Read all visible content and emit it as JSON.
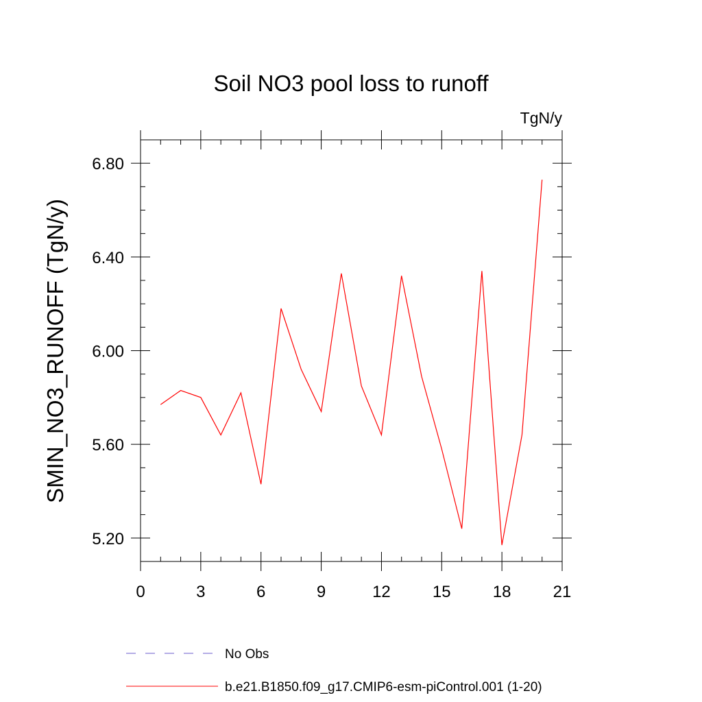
{
  "chart_data": {
    "type": "line",
    "title": "Soil NO3 pool loss to runoff",
    "units_label": "TgN/y",
    "ylabel": "SMIN_NO3_RUNOFF  (TgN/y)",
    "xlabel": "",
    "xlim": [
      0,
      21
    ],
    "ylim": [
      5.1,
      6.9
    ],
    "x_ticks": [
      0,
      3,
      6,
      9,
      12,
      15,
      18,
      21
    ],
    "x_minor_step": 1,
    "y_ticks": [
      5.2,
      5.6,
      6.0,
      6.4,
      6.8
    ],
    "y_tick_labels": [
      "5.20",
      "5.60",
      "6.00",
      "6.40",
      "6.80"
    ],
    "y_minor_step": 0.1,
    "grid": false,
    "legend_position": "bottom",
    "series": [
      {
        "name": "b.e21.B1850.f09_g17.CMIP6-esm-piControl.001 (1-20)",
        "color": "#ff0000",
        "style": "solid",
        "x": [
          1,
          2,
          3,
          4,
          5,
          6,
          7,
          8,
          9,
          10,
          11,
          12,
          13,
          14,
          15,
          16,
          17,
          18,
          19,
          20
        ],
        "y": [
          5.77,
          5.83,
          5.8,
          5.64,
          5.82,
          5.43,
          6.18,
          5.92,
          5.74,
          6.33,
          5.85,
          5.64,
          6.32,
          5.89,
          5.58,
          5.24,
          6.34,
          5.17,
          5.64,
          6.73
        ]
      }
    ],
    "legend": [
      {
        "label": "No Obs",
        "color": "#6a5acd",
        "style": "dashed"
      },
      {
        "label": "b.e21.B1850.f09_g17.CMIP6-esm-piControl.001 (1-20)",
        "color": "#ff0000",
        "style": "solid"
      }
    ]
  }
}
